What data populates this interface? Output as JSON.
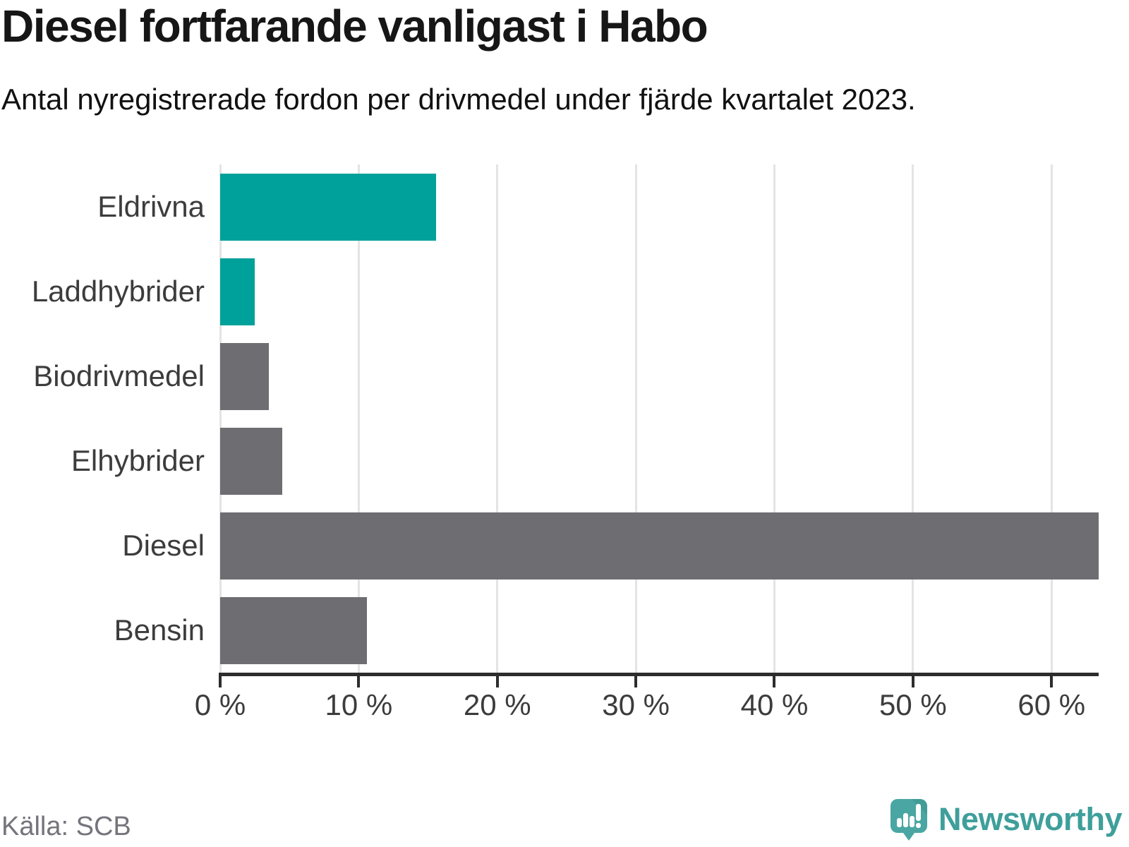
{
  "title": "Diesel fortfarande vanligast i Habo",
  "subtitle": "Antal nyregistrerade fordon per drivmedel under fjärde kvartalet 2023.",
  "source": "Källa: SCB",
  "branding": {
    "name": "Newsworthy",
    "icon": "speech-bubble-bar-chart-icon",
    "wordmark_color": "#3e9f9b",
    "icon_color": "#4aa6a2"
  },
  "chart_data": {
    "type": "bar",
    "orientation": "horizontal",
    "title": "Diesel fortfarande vanligast i Habo",
    "subtitle": "Antal nyregistrerade fordon per drivmedel under fjärde kvartalet 2023.",
    "categories": [
      "Eldrivna",
      "Laddhybrider",
      "Biodrivmedel",
      "Elhybrider",
      "Diesel",
      "Bensin"
    ],
    "values": [
      15.6,
      2.5,
      3.5,
      4.5,
      63.4,
      10.6
    ],
    "unit": "%",
    "bar_colors": [
      "#00a19a",
      "#00a19a",
      "#6d6d72",
      "#6d6d72",
      "#6d6d72",
      "#6d6d72"
    ],
    "accent_color": "#00a19a",
    "neutral_color": "#6d6d72",
    "x_ticks": [
      0,
      10,
      20,
      30,
      40,
      50,
      60
    ],
    "x_tick_labels": [
      "0 %",
      "10 %",
      "20 %",
      "30 %",
      "40 %",
      "50 %",
      "60 %"
    ],
    "xlim": [
      0,
      63.4
    ],
    "grid": "vertical-gridlines-on",
    "legend": "none",
    "grid_color": "#e4e4e4",
    "axis_color": "#2d2d2d",
    "label_color": "#3c3c3c"
  }
}
